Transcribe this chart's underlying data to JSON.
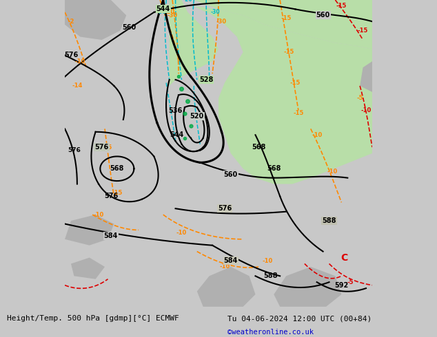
{
  "title_left": "Height/Temp. 500 hPa [gdmp][°C] ECMWF",
  "title_right": "Tu 04-06-2024 12:00 UTC (00+84)",
  "credit": "©weatheronline.co.uk",
  "bg_color": "#c8c8c8",
  "land_green": "#b8dea8",
  "land_gray": "#b0b0b0",
  "z500_color": "#000000",
  "temp_orange": "#ff8800",
  "temp_red": "#dd0000",
  "cyan_color": "#00bbcc",
  "green_color": "#00aa44"
}
